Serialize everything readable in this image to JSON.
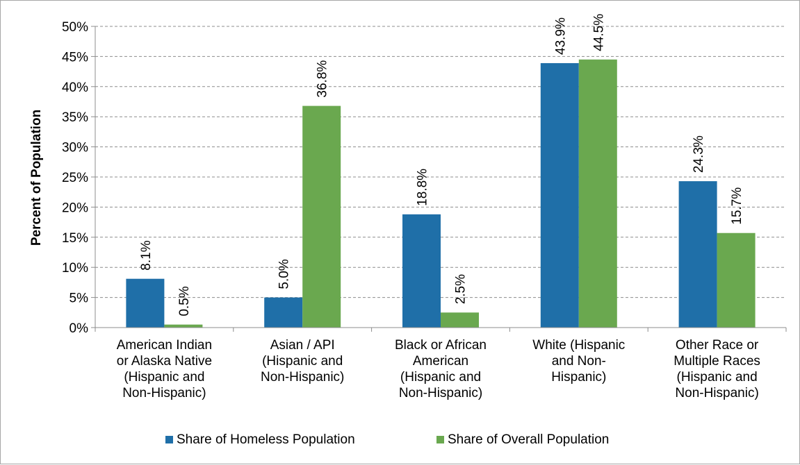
{
  "chart_data": {
    "type": "bar",
    "title": "",
    "ylabel": "Percent of Population",
    "ylim": [
      0,
      50
    ],
    "yticks": [
      "0%",
      "5%",
      "10%",
      "15%",
      "20%",
      "25%",
      "30%",
      "35%",
      "40%",
      "45%",
      "50%"
    ],
    "grid": true,
    "legend_position": "bottom",
    "categories": [
      [
        "American Indian",
        "or Alaska Native",
        "(Hispanic and",
        "Non-Hispanic)"
      ],
      [
        "Asian / API",
        "(Hispanic and",
        "Non-Hispanic)"
      ],
      [
        "Black or African",
        "American",
        "(Hispanic and",
        "Non-Hispanic)"
      ],
      [
        "White (Hispanic",
        "and Non-",
        "Hispanic)"
      ],
      [
        "Other Race or",
        "Multiple Races",
        "(Hispanic and",
        "Non-Hispanic)"
      ]
    ],
    "series": [
      {
        "name": "Share of Homeless Population",
        "color": "#1f6fa8",
        "values": [
          8.1,
          5.0,
          18.8,
          43.9,
          24.3
        ],
        "labels": [
          "8.1%",
          "5.0%",
          "18.8%",
          "43.9%",
          "24.3%"
        ]
      },
      {
        "name": "Share of Overall Population",
        "color": "#6aa84f",
        "values": [
          0.5,
          36.8,
          2.5,
          44.5,
          15.7
        ],
        "labels": [
          "0.5%",
          "36.8%",
          "2.5%",
          "44.5%",
          "15.7%"
        ]
      }
    ]
  }
}
